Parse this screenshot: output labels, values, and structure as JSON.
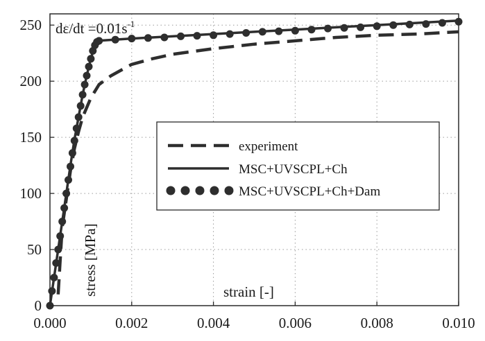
{
  "chart_data": {
    "type": "line",
    "annotation": "dε/dt =0.01s",
    "annotation_sup": "-1",
    "xlabel": "strain [-]",
    "ylabel": "stress [MPa]",
    "xlim": [
      0,
      0.01
    ],
    "ylim": [
      0,
      260
    ],
    "x_ticks": [
      0.0,
      0.002,
      0.004,
      0.006,
      0.008,
      0.01
    ],
    "x_tick_labels": [
      "0.000",
      "0.002",
      "0.004",
      "0.006",
      "0.008",
      "0.010"
    ],
    "y_ticks": [
      0,
      50,
      100,
      150,
      200,
      250
    ],
    "y_tick_labels": [
      "0",
      "50",
      "100",
      "150",
      "200",
      "250"
    ],
    "grid": true,
    "grid_style": "dotted",
    "legend_position": "center-right",
    "series": [
      {
        "name": "experiment",
        "style": "dashed",
        "color": "#2e2e2e",
        "points": [
          [
            0.0002,
            10
          ],
          [
            0.00025,
            40
          ],
          [
            0.0003,
            70
          ],
          [
            0.0004,
            95
          ],
          [
            0.0005,
            120
          ],
          [
            0.0006,
            140
          ],
          [
            0.0007,
            155
          ],
          [
            0.0008,
            168
          ],
          [
            0.001,
            185
          ],
          [
            0.0012,
            197
          ],
          [
            0.0015,
            205
          ],
          [
            0.002,
            215
          ],
          [
            0.0025,
            220
          ],
          [
            0.003,
            224
          ],
          [
            0.004,
            229
          ],
          [
            0.005,
            233
          ],
          [
            0.006,
            236
          ],
          [
            0.007,
            239
          ],
          [
            0.008,
            241
          ],
          [
            0.009,
            242
          ],
          [
            0.01,
            244
          ]
        ]
      },
      {
        "name": "MSC+UVSCPL+Ch",
        "style": "solid",
        "color": "#2e2e2e",
        "points": [
          [
            0,
            0
          ],
          [
            0.0001,
            25
          ],
          [
            0.0002,
            50
          ],
          [
            0.0003,
            75
          ],
          [
            0.0004,
            100
          ],
          [
            0.0005,
            125
          ],
          [
            0.0006,
            148
          ],
          [
            0.0007,
            168
          ],
          [
            0.0008,
            188
          ],
          [
            0.0009,
            205
          ],
          [
            0.001,
            220
          ],
          [
            0.0011,
            232
          ],
          [
            0.00115,
            236
          ],
          [
            0.002,
            238
          ],
          [
            0.003,
            240
          ],
          [
            0.004,
            242
          ],
          [
            0.005,
            244
          ],
          [
            0.006,
            246
          ],
          [
            0.007,
            248
          ],
          [
            0.008,
            250
          ],
          [
            0.009,
            252
          ],
          [
            0.01,
            254
          ]
        ]
      },
      {
        "name": "MSC+UVSCPL+Ch+Dam",
        "style": "dotted-markers",
        "color": "#2e2e2e",
        "points": [
          [
            0,
            0
          ],
          [
            5e-05,
            13
          ],
          [
            0.0001,
            25
          ],
          [
            0.00015,
            38
          ],
          [
            0.0002,
            50
          ],
          [
            0.00025,
            62
          ],
          [
            0.0003,
            75
          ],
          [
            0.00035,
            87
          ],
          [
            0.0004,
            100
          ],
          [
            0.00045,
            112
          ],
          [
            0.0005,
            124
          ],
          [
            0.00055,
            136
          ],
          [
            0.0006,
            147
          ],
          [
            0.00065,
            158
          ],
          [
            0.0007,
            168
          ],
          [
            0.00075,
            178
          ],
          [
            0.0008,
            188
          ],
          [
            0.00085,
            197
          ],
          [
            0.0009,
            205
          ],
          [
            0.00095,
            213
          ],
          [
            0.001,
            220
          ],
          [
            0.00105,
            227
          ],
          [
            0.0011,
            232
          ],
          [
            0.00115,
            235
          ],
          [
            0.0012,
            236
          ],
          [
            0.0016,
            237
          ],
          [
            0.002,
            238
          ],
          [
            0.0024,
            238.5
          ],
          [
            0.0028,
            239
          ],
          [
            0.0032,
            240
          ],
          [
            0.0036,
            240.5
          ],
          [
            0.004,
            241
          ],
          [
            0.0044,
            242
          ],
          [
            0.0048,
            243
          ],
          [
            0.0052,
            244
          ],
          [
            0.0056,
            244.5
          ],
          [
            0.006,
            245
          ],
          [
            0.0064,
            246
          ],
          [
            0.0068,
            247
          ],
          [
            0.0072,
            247.5
          ],
          [
            0.0076,
            248
          ],
          [
            0.008,
            249
          ],
          [
            0.0084,
            250
          ],
          [
            0.0088,
            250.5
          ],
          [
            0.0092,
            251
          ],
          [
            0.0096,
            252
          ],
          [
            0.01,
            253
          ]
        ]
      }
    ]
  }
}
